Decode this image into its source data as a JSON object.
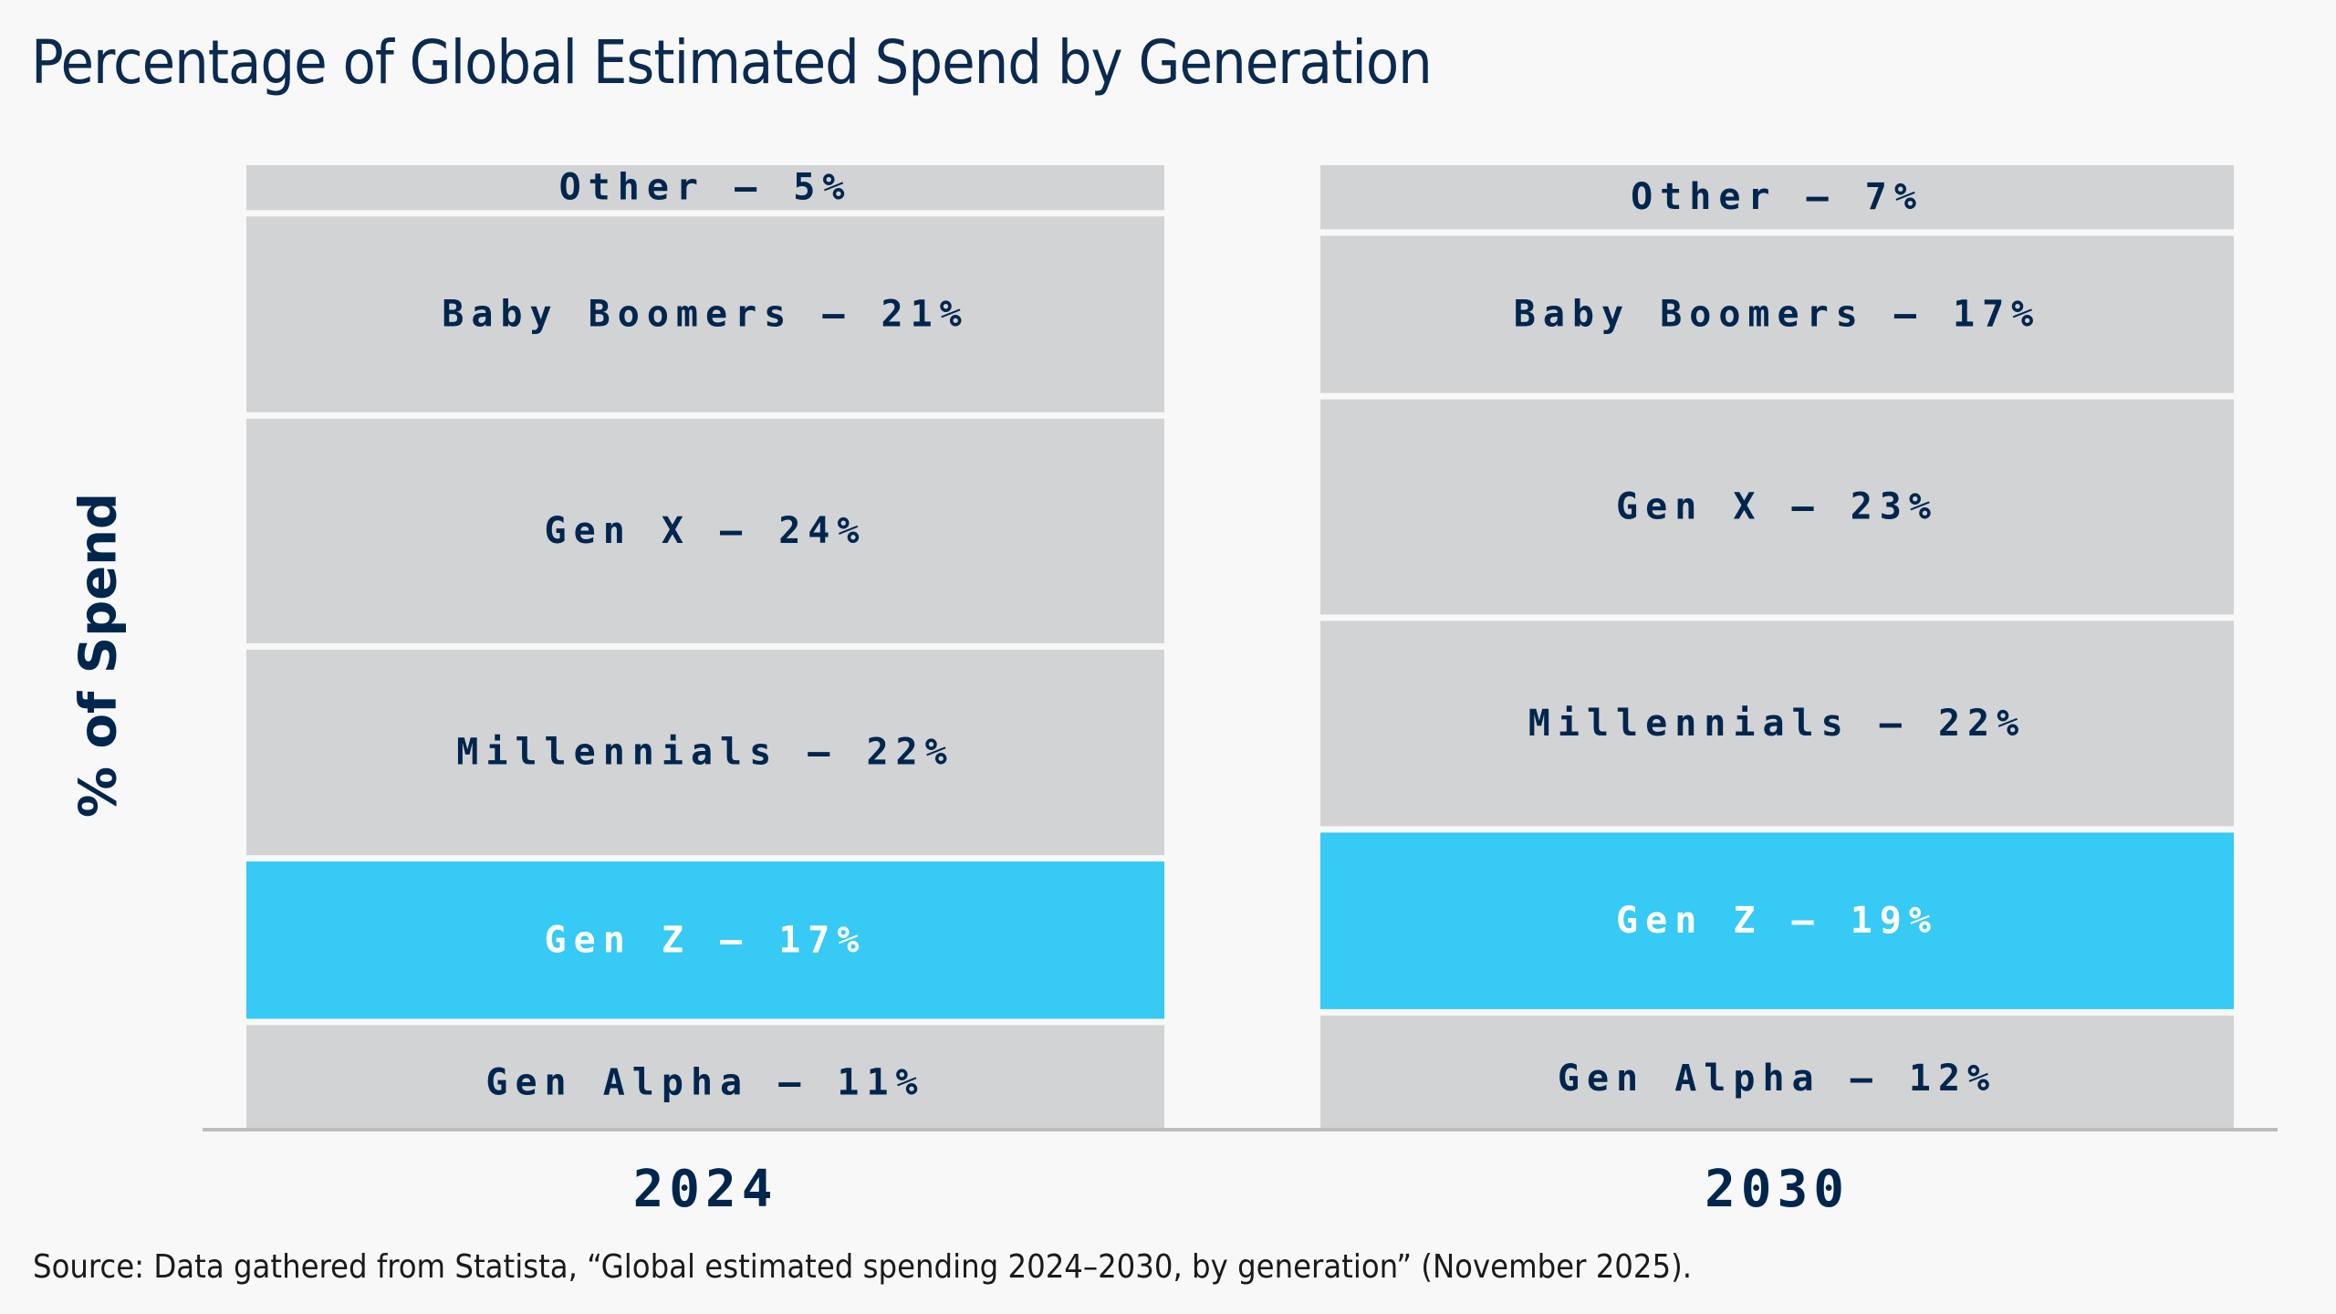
{
  "title": "Percentage of Global Estimated Spend by Generation",
  "source": "Source: Data gathered from Statista, “Global estimated spending 2024–2030, by generation” (November 2025).",
  "colors": {
    "background": "#f8f8f8",
    "segment": "#d2d3d5",
    "highlight": "#36caf5",
    "text_dark": "#00264d",
    "text_light": "#ffffff",
    "axis": "#bdbdbd"
  },
  "chart_data": {
    "type": "bar",
    "stacked": true,
    "normalized": true,
    "title": "Percentage of Global Estimated Spend by Generation",
    "xlabel": "",
    "ylabel": "% of Spend",
    "categories": [
      "2024",
      "2030"
    ],
    "ylim": [
      0,
      100
    ],
    "grid": false,
    "legend": "none",
    "highlight_series": "Gen Z",
    "series": [
      {
        "name": "Gen Alpha",
        "values": [
          11,
          12
        ],
        "labels": [
          "Gen Alpha – 11%",
          "Gen Alpha – 12%"
        ]
      },
      {
        "name": "Gen Z",
        "values": [
          17,
          19
        ],
        "labels": [
          "Gen Z – 17%",
          "Gen Z – 19%"
        ]
      },
      {
        "name": "Millennials",
        "values": [
          22,
          22
        ],
        "labels": [
          "Millennials – 22%",
          "Millennials – 22%"
        ]
      },
      {
        "name": "Gen X",
        "values": [
          24,
          23
        ],
        "labels": [
          "Gen X – 24%",
          "Gen X – 23%"
        ]
      },
      {
        "name": "Baby Boomers",
        "values": [
          21,
          17
        ],
        "labels": [
          "Baby Boomers – 21%",
          "Baby Boomers – 17%"
        ]
      },
      {
        "name": "Other",
        "values": [
          5,
          7
        ],
        "labels": [
          "Other – 5%",
          "Other – 7%"
        ]
      }
    ]
  }
}
